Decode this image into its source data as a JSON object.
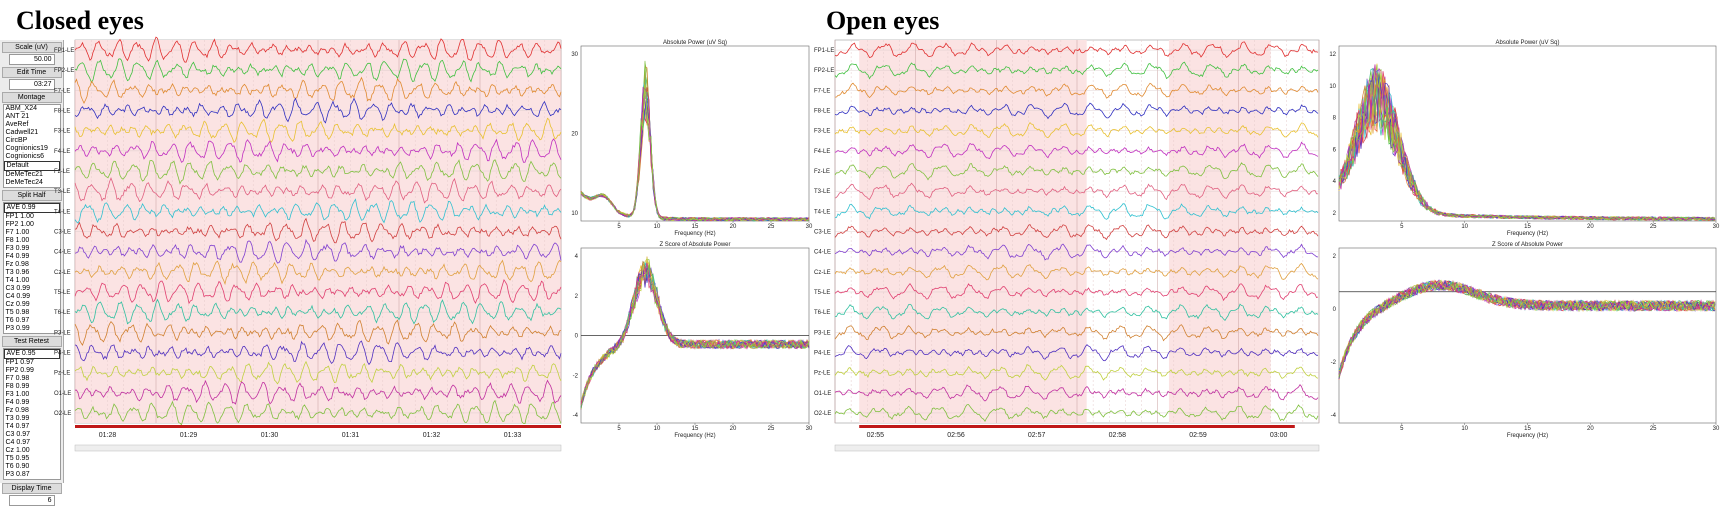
{
  "left": {
    "title": "Closed eyes",
    "times": [
      "01:28",
      "01:29",
      "01:30",
      "01:31",
      "01:32",
      "01:33"
    ]
  },
  "right": {
    "title": "Open eyes",
    "times": [
      "02:55",
      "02:56",
      "02:57",
      "02:58",
      "02:59",
      "03:00"
    ]
  },
  "channels": [
    "FP1-LE",
    "FP2-LE",
    "F7-LE",
    "F8-LE",
    "F3-LE",
    "F4-LE",
    "Fz-LE",
    "T3-LE",
    "T4-LE",
    "C3-LE",
    "C4-LE",
    "Cz-LE",
    "T5-LE",
    "T6-LE",
    "P3-LE",
    "P4-LE",
    "Pz-LE",
    "O1-LE",
    "O2-LE"
  ],
  "channel_colors": [
    "#e03030",
    "#40c040",
    "#e08a30",
    "#3030c0",
    "#e8c030",
    "#c030c0",
    "#80c040",
    "#e06080",
    "#30c0d0",
    "#d04040",
    "#8040d0",
    "#e0a040",
    "#e04070",
    "#30c0a0",
    "#d08030",
    "#5030c0",
    "#c0d040",
    "#c030a0",
    "#80c040"
  ],
  "sidebar": {
    "scale_label": "Scale (uV)",
    "scale_value": "50.00",
    "edit_time_label": "Edit Time",
    "edit_time_value": "03:27",
    "montage_label": "Montage",
    "montage_items": [
      "ABM_X24",
      "ANT 21",
      "AveRef",
      "Cadwell21",
      "CircBP",
      "Cognionics19",
      "Cognionics6",
      "Default",
      "DeMeTec21",
      "DeMeTec24"
    ],
    "split_half_label": "Split Half",
    "split_half_items": [
      "AVE 0.99",
      "FP1 1.00",
      "FP2 1.00",
      "F7 1.00",
      "F8 1.00",
      "F3 0.99",
      "F4 0.99",
      "Fz 0.98",
      "T3 0.96",
      "T4 1.00",
      "C3 0.99",
      "C4 0.99",
      "Cz 0.99",
      "T5 0.98",
      "T6 0.97",
      "P3 0.99"
    ],
    "test_retest_label": "Test Retest",
    "test_retest_items": [
      "AVE 0.95",
      "FP1 0.97",
      "FP2 0.99",
      "F7 0.98",
      "F8 0.99",
      "F3 1.00",
      "F4 0.99",
      "Fz 0.98",
      "T3 0.99",
      "T4 0.97",
      "C3 0.97",
      "C4 0.97",
      "Cz 1.00",
      "T5 0.95",
      "T6 0.90",
      "P3 0.87"
    ],
    "display_time_label": "Display Time",
    "display_time_value": "6"
  },
  "plots": {
    "abs_title": "Absolute Power (uV Sq)",
    "z_title": "Z Score of Absolute Power",
    "xlabel": "Frequency (Hz)",
    "x_ticks": [
      "5",
      "10",
      "15",
      "20",
      "25",
      "30"
    ],
    "left_abs_y_ticks": [
      "30",
      "20",
      "10"
    ],
    "left_z_y_ticks": [
      "4",
      "2",
      "0",
      "-2",
      "-4"
    ],
    "right_abs_y_ticks": [
      "12",
      "10",
      "8",
      "6",
      "4",
      "2"
    ],
    "right_z_y_ticks": [
      "2",
      "0",
      "-2",
      "-4"
    ]
  }
}
